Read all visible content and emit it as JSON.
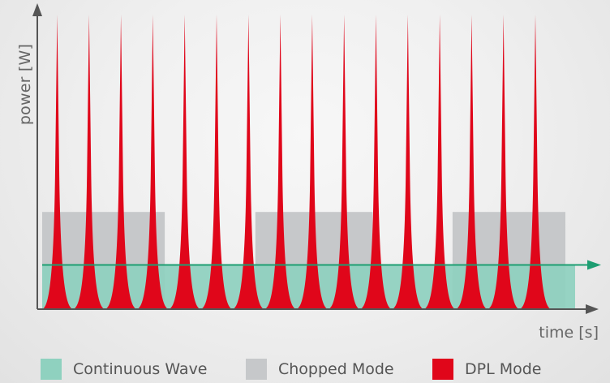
{
  "axes": {
    "ylabel": "power [W]",
    "xlabel": "time [s]",
    "axis_color": "#555555"
  },
  "modes": {
    "continuous": {
      "label": "Continuous Wave",
      "color": "#8fd1bf",
      "line_color": "#1e9e72",
      "level": 0.15
    },
    "chopped": {
      "label": "Chopped Mode",
      "color": "#c6c8ca",
      "level": 0.33,
      "on_windows": [
        [
          0.0,
          0.23
        ],
        [
          0.4,
          0.62
        ],
        [
          0.77,
          1.0
        ]
      ]
    },
    "dpl": {
      "label": "DPL Mode",
      "color": "#e0061a",
      "pulse_count": 16,
      "peak": 1.0
    }
  }
}
